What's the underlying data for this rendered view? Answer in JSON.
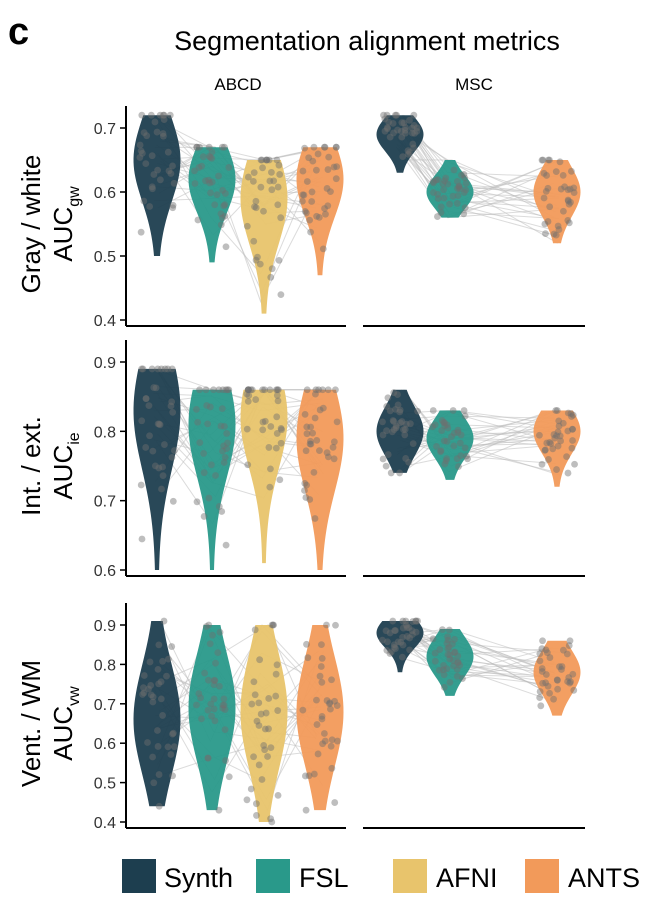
{
  "panel_letter": "c",
  "title": "Segmentation alignment metrics",
  "column_titles": [
    "ABCD",
    "MSC"
  ],
  "colors": {
    "Synth": "#1d3e4f",
    "FSL": "#29998a",
    "AFNI": "#e8c46c",
    "ANTS": "#f29a5a"
  },
  "legend": [
    {
      "name": "Synth",
      "color": "#1d3e4f"
    },
    {
      "name": "FSL",
      "color": "#29998a"
    },
    {
      "name": "AFNI",
      "color": "#e8c46c"
    },
    {
      "name": "ANTS",
      "color": "#f29a5a"
    }
  ],
  "chart_data": [
    {
      "type": "violin",
      "row": "gw",
      "ylabel_top": "Gray / white",
      "ylabel_main": "AUC",
      "ylabel_sub": "gw",
      "ylim": [
        0.4,
        0.7
      ],
      "yticks": [
        "0.4",
        "0.5",
        "0.6",
        "0.7"
      ],
      "ABCD": {
        "Synth": {
          "median": 0.65,
          "min": 0.5,
          "max": 0.72
        },
        "FSL": {
          "median": 0.62,
          "min": 0.49,
          "max": 0.67
        },
        "AFNI": {
          "median": 0.59,
          "min": 0.41,
          "max": 0.65
        },
        "ANTS": {
          "median": 0.62,
          "min": 0.47,
          "max": 0.67
        }
      },
      "MSC": {
        "Synth": {
          "median": 0.69,
          "min": 0.63,
          "max": 0.72
        },
        "FSL": {
          "median": 0.6,
          "min": 0.56,
          "max": 0.65
        },
        "ANTS": {
          "median": 0.6,
          "min": 0.52,
          "max": 0.65
        }
      }
    },
    {
      "type": "violin",
      "row": "ie",
      "ylabel_top": "Int. / ext.",
      "ylabel_main": "AUC",
      "ylabel_sub": "ie",
      "ylim": [
        0.6,
        0.9
      ],
      "yticks": [
        "0.6",
        "0.7",
        "0.8",
        "0.9"
      ],
      "ABCD": {
        "Synth": {
          "median": 0.83,
          "min": 0.6,
          "max": 0.89
        },
        "FSL": {
          "median": 0.81,
          "min": 0.6,
          "max": 0.86
        },
        "AFNI": {
          "median": 0.82,
          "min": 0.61,
          "max": 0.86
        },
        "ANTS": {
          "median": 0.79,
          "min": 0.6,
          "max": 0.86
        }
      },
      "MSC": {
        "Synth": {
          "median": 0.8,
          "min": 0.74,
          "max": 0.86
        },
        "FSL": {
          "median": 0.79,
          "min": 0.73,
          "max": 0.83
        },
        "ANTS": {
          "median": 0.8,
          "min": 0.72,
          "max": 0.83
        }
      }
    },
    {
      "type": "violin",
      "row": "vw",
      "ylabel_top": "Vent. / WM",
      "ylabel_main": "AUC",
      "ylabel_sub": "vw",
      "ylim": [
        0.4,
        0.9
      ],
      "yticks": [
        "0.4",
        "0.5",
        "0.6",
        "0.7",
        "0.8",
        "0.9"
      ],
      "ABCD": {
        "Synth": {
          "median": 0.66,
          "min": 0.44,
          "max": 0.91
        },
        "FSL": {
          "median": 0.69,
          "min": 0.43,
          "max": 0.9
        },
        "AFNI": {
          "median": 0.68,
          "min": 0.4,
          "max": 0.9
        },
        "ANTS": {
          "median": 0.68,
          "min": 0.43,
          "max": 0.9
        }
      },
      "MSC": {
        "Synth": {
          "median": 0.88,
          "min": 0.78,
          "max": 0.91
        },
        "FSL": {
          "median": 0.82,
          "min": 0.72,
          "max": 0.89
        },
        "ANTS": {
          "median": 0.78,
          "min": 0.67,
          "max": 0.86
        }
      }
    }
  ]
}
